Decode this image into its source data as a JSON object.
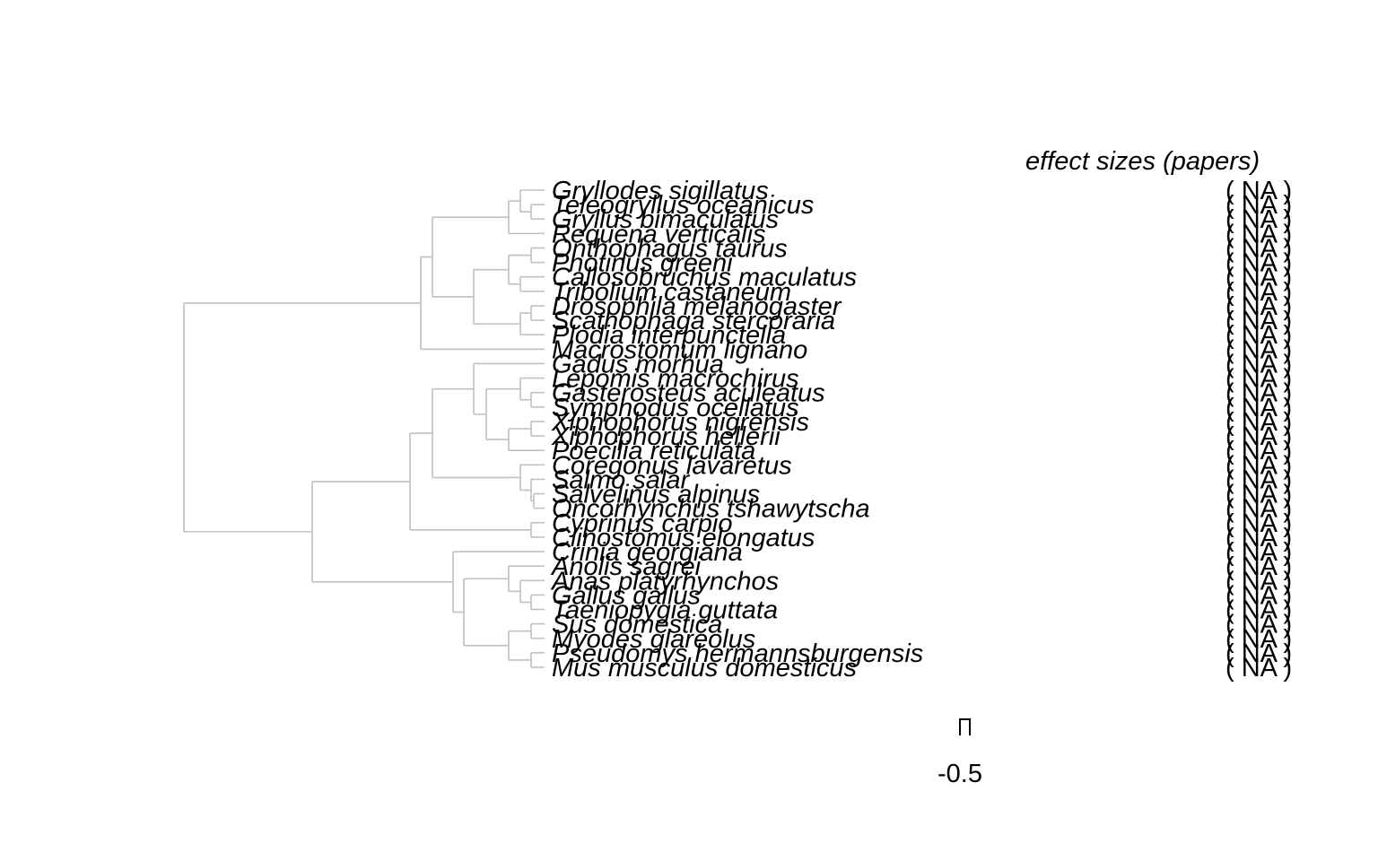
{
  "tree": {
    "branch_color": "#c0c0c0",
    "species": [
      "Gryllodes sigillatus",
      "Teleogryllus oceanicus",
      "Gryllus bimaculatus",
      "Requena verticalis",
      "Onthophagus taurus",
      "Photinus greeni",
      "Callosobruchus maculatus",
      "Tribolium castaneum",
      "Drosophila melanogaster",
      "Scathophaga stercoraria",
      "Plodia interpunctella",
      "Macrostomum lignano",
      "Gadus morhua",
      "Lepomis macrochirus",
      "Gasterosteus aculeatus",
      "Symphodus ocellatus",
      "Xiphophorus nigrensis",
      "Xiphophorus hellerii",
      "Poecilia reticulata",
      "Coregonus lavaretus",
      "Salmo salar",
      "Salvelinus alpinus",
      "Oncorhynchus tshawytscha",
      "Cyprinus carpio",
      "Clinostomus elongatus",
      "Crinia georgiana",
      "Anolis sagrei",
      "Anas platyrhynchos",
      "Gallus gallus",
      "Taeniopygia guttata",
      "Sus domestica",
      "Myodes glareolus",
      "Pseudomys hermannsburgensis",
      "Mus musculus domesticus"
    ]
  },
  "effect_sizes": {
    "header": "effect sizes (papers)",
    "value_label": "( NA )"
  },
  "axis": {
    "tick_label": "-0.5"
  }
}
